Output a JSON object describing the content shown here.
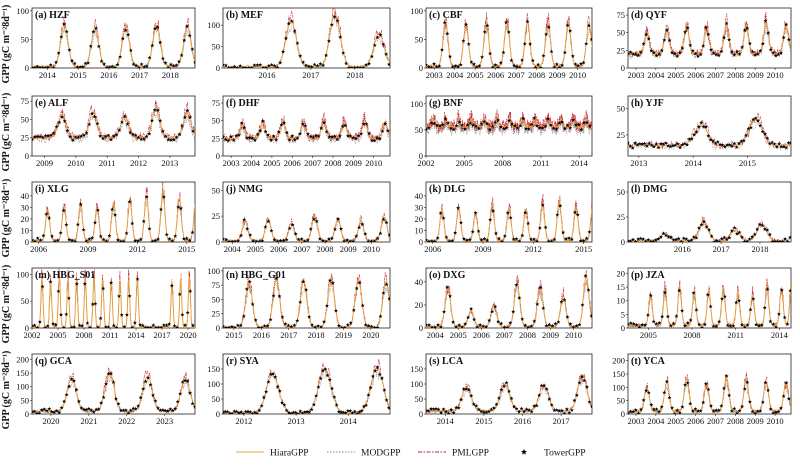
{
  "ylabel_row_text": "GPP (gC m⁻²8d⁻¹)",
  "colors": {
    "HiaraGPP": "#e8a23c",
    "MODGPP": "#8a8a8a",
    "PMLGPP": "#c4202a",
    "TowerGPP": "#000000"
  },
  "legend": [
    {
      "name": "HiaraGPP",
      "style": "solid",
      "color": "#e8a23c"
    },
    {
      "name": "MODGPP",
      "style": "dotted",
      "color": "#8a8a8a"
    },
    {
      "name": "PMLGPP",
      "style": "dashdot",
      "color": "#c4202a"
    },
    {
      "name": "TowerGPP",
      "style": "star",
      "color": "#000000"
    }
  ],
  "chart_data": [
    {
      "type": "line",
      "title": "(a) HZF",
      "xlim": [
        2013.5,
        2018.8
      ],
      "ylim": [
        0,
        105
      ],
      "yticks": [
        0,
        50,
        100
      ],
      "xticks": [
        2014,
        2015,
        2016,
        2017,
        2018
      ],
      "peaks": [
        75,
        68,
        70,
        75,
        72
      ],
      "peak_years": [
        2014,
        2015,
        2016,
        2017,
        2018
      ],
      "base": 2,
      "seed": 1,
      "tower_max": 100
    },
    {
      "type": "line",
      "title": "(b) MEF",
      "xlim": [
        2015.0,
        2018.8
      ],
      "ylim": [
        0,
        140
      ],
      "yticks": [
        0,
        50,
        100
      ],
      "xticks": [
        2016,
        2017,
        2018
      ],
      "peaks": [
        110,
        125,
        80
      ],
      "peak_years": [
        2016,
        2017,
        2018
      ],
      "base": 2,
      "seed": 2,
      "tower_max": 135
    },
    {
      "type": "line",
      "title": "(c) CBF",
      "xlim": [
        2002.6,
        2010.7
      ],
      "ylim": [
        0,
        105
      ],
      "yticks": [
        0,
        50,
        100
      ],
      "xticks": [
        2003,
        2004,
        2005,
        2006,
        2007,
        2008,
        2009,
        2010
      ],
      "peaks": [
        80,
        75,
        78,
        82,
        80,
        78,
        80,
        78
      ],
      "peak_years": [
        2003,
        2004,
        2005,
        2006,
        2007,
        2008,
        2009,
        2010
      ],
      "base": 3,
      "seed": 3,
      "tower_max": 100
    },
    {
      "type": "line",
      "title": "(d) QYF",
      "xlim": [
        2002.6,
        2010.8
      ],
      "ylim": [
        0,
        85
      ],
      "yticks": [
        0,
        25,
        50,
        75
      ],
      "xticks": [
        2003,
        2004,
        2005,
        2006,
        2007,
        2008,
        2009,
        2010
      ],
      "peaks": [
        50,
        55,
        60,
        58,
        62,
        60,
        65,
        60
      ],
      "peak_years": [
        2003,
        2004,
        2005,
        2006,
        2007,
        2008,
        2009,
        2010
      ],
      "base": 20,
      "seed": 4,
      "tower_max": 80
    },
    {
      "type": "line",
      "title": "(e) ALF",
      "xlim": [
        2008.6,
        2013.8
      ],
      "ylim": [
        0,
        82
      ],
      "yticks": [
        0,
        25,
        50,
        75
      ],
      "xticks": [
        2009,
        2010,
        2011,
        2012,
        2013
      ],
      "peaks": [
        55,
        60,
        55,
        65,
        60
      ],
      "peak_years": [
        2009,
        2010,
        2011,
        2012,
        2013
      ],
      "base": 25,
      "seed": 5,
      "tower_max": 78
    },
    {
      "type": "line",
      "title": "(f) DHF",
      "xlim": [
        2002.6,
        2010.8
      ],
      "ylim": [
        0,
        85
      ],
      "yticks": [
        0,
        25,
        50,
        75
      ],
      "xticks": [
        2003,
        2004,
        2005,
        2006,
        2007,
        2008,
        2009,
        2010
      ],
      "peaks": [
        45,
        48,
        50,
        46,
        50,
        48,
        50,
        47
      ],
      "peak_years": [
        2003,
        2004,
        2005,
        2006,
        2007,
        2008,
        2009,
        2010
      ],
      "base": 25,
      "seed": 6,
      "tower_max": 70
    },
    {
      "type": "line",
      "title": "(g) BNF",
      "xlim": [
        2002.0,
        2015.0
      ],
      "ylim": [
        0,
        115
      ],
      "yticks": [
        0,
        50,
        100
      ],
      "xticks": [
        2002,
        2005,
        2008,
        2011,
        2014
      ],
      "peaks": [
        70,
        70,
        70,
        70,
        70,
        70,
        70,
        70,
        70,
        70,
        70,
        70,
        70
      ],
      "peak_years": [
        2002,
        2003,
        2004,
        2005,
        2006,
        2007,
        2008,
        2009,
        2010,
        2011,
        2012,
        2013,
        2014
      ],
      "base": 55,
      "seed": 7,
      "tower_max": 95
    },
    {
      "type": "line",
      "title": "(h) YJF",
      "xlim": [
        2012.8,
        2015.8
      ],
      "ylim": [
        5,
        62
      ],
      "yticks": [
        25,
        50
      ],
      "xticks": [
        2013,
        2014,
        2015
      ],
      "peaks": [
        35,
        40,
        35
      ],
      "peak_years": [
        2013.6,
        2014.6,
        2015.6
      ],
      "base": 15,
      "seed": 8,
      "tower_max": 45
    },
    {
      "type": "line",
      "title": "(i) XLG",
      "xlim": [
        2005.6,
        2015.5
      ],
      "ylim": [
        0,
        52
      ],
      "yticks": [
        0,
        10,
        20,
        30,
        40
      ],
      "xticks": [
        2006,
        2009,
        2012,
        2015
      ],
      "peaks": [
        28,
        30,
        32,
        30,
        34,
        36,
        40,
        44,
        38,
        35
      ],
      "peak_years": [
        2006,
        2007,
        2008,
        2009,
        2010,
        2011,
        2012,
        2013,
        2014,
        2015
      ],
      "base": 1,
      "seed": 9,
      "tower_max": 50
    },
    {
      "type": "line",
      "title": "(j) NMG",
      "xlim": [
        2003.6,
        2010.8
      ],
      "ylim": [
        0,
        58
      ],
      "yticks": [
        0,
        25,
        50
      ],
      "xticks": [
        2004,
        2005,
        2006,
        2007,
        2008,
        2009,
        2010
      ],
      "peaks": [
        20,
        22,
        18,
        25,
        22,
        20,
        24
      ],
      "peak_years": [
        2004,
        2005,
        2006,
        2007,
        2008,
        2009,
        2010
      ],
      "base": 1,
      "seed": 10,
      "tower_max": 55
    },
    {
      "type": "line",
      "title": "(k) DLG",
      "xlim": [
        2005.6,
        2015.5
      ],
      "ylim": [
        0,
        52
      ],
      "yticks": [
        0,
        10,
        20,
        30,
        40
      ],
      "xticks": [
        2006,
        2009,
        2012,
        2015
      ],
      "peaks": [
        28,
        30,
        25,
        32,
        30,
        28,
        33,
        35,
        30,
        32
      ],
      "peak_years": [
        2006,
        2007,
        2008,
        2009,
        2010,
        2011,
        2012,
        2013,
        2014,
        2015
      ],
      "base": 1,
      "seed": 11,
      "tower_max": 45
    },
    {
      "type": "line",
      "title": "(l) DMG",
      "xlim": [
        2014.6,
        2018.8
      ],
      "ylim": [
        0,
        60
      ],
      "yticks": [
        0,
        25,
        50
      ],
      "xticks": [
        2016,
        2017,
        2018
      ],
      "peaks": [
        8,
        20,
        12,
        18,
        52
      ],
      "peak_years": [
        2015,
        2016,
        2016.8,
        2017.5,
        2018.5
      ],
      "base": 1,
      "seed": 12,
      "tower_max": 55
    },
    {
      "type": "line",
      "title": "(m) HBG_S01",
      "xlim": [
        2002.0,
        2020.8
      ],
      "ylim": [
        0,
        112
      ],
      "yticks": [
        0,
        50,
        100
      ],
      "xticks": [
        2002,
        2005,
        2008,
        2011,
        2014,
        2017,
        2020
      ],
      "peaks": [
        90,
        85,
        95,
        90,
        88,
        92,
        95,
        90,
        85,
        88,
        90,
        92,
        0,
        0,
        0,
        85,
        90,
        95,
        92
      ],
      "peak_years": [
        2002.6,
        2003.6,
        2004.6,
        2005.6,
        2006.6,
        2007.6,
        2008.6,
        2009.6,
        2010.6,
        2011.6,
        2012.6,
        2013.6,
        2014.6,
        2015.6,
        2016.6,
        2017.6,
        2018.6,
        2019.6,
        2020.6
      ],
      "base": 1,
      "seed": 13,
      "tower_max": 105
    },
    {
      "type": "line",
      "title": "(n) HBG_G01",
      "xlim": [
        2014.6,
        2020.7
      ],
      "ylim": [
        0,
        105
      ],
      "yticks": [
        0,
        25,
        50,
        75,
        100
      ],
      "xticks": [
        2015,
        2016,
        2017,
        2018,
        2019,
        2020
      ],
      "peaks": [
        80,
        85,
        82,
        88,
        85,
        82
      ],
      "peak_years": [
        2015,
        2016,
        2017,
        2018,
        2019,
        2020
      ],
      "base": 1,
      "seed": 14,
      "tower_max": 90
    },
    {
      "type": "line",
      "title": "(o) DXG",
      "xlim": [
        2003.6,
        2010.8
      ],
      "ylim": [
        0,
        52
      ],
      "yticks": [
        0,
        20,
        40
      ],
      "xticks": [
        2004,
        2005,
        2006,
        2007,
        2008,
        2009,
        2010
      ],
      "peaks": [
        35,
        15,
        20,
        38,
        35,
        28,
        45
      ],
      "peak_years": [
        2004,
        2005,
        2006,
        2007,
        2008,
        2009,
        2010
      ],
      "base": 1,
      "seed": 15,
      "tower_max": 48
    },
    {
      "type": "line",
      "title": "(p) JZA",
      "xlim": [
        2003.6,
        2014.8
      ],
      "ylim": [
        0,
        22
      ],
      "yticks": [
        0,
        5,
        10,
        15,
        20
      ],
      "xticks": [
        2005,
        2008,
        2011,
        2014
      ],
      "peaks": [
        12,
        14,
        15,
        13,
        14,
        15,
        13,
        12,
        15,
        14,
        18
      ],
      "peak_years": [
        2004.6,
        2005.6,
        2006.6,
        2007.6,
        2008.6,
        2009.6,
        2010.6,
        2011.6,
        2012.6,
        2013.6,
        2014.3
      ],
      "base": 1,
      "seed": 16,
      "tower_max": 20
    },
    {
      "type": "line",
      "title": "(q) GCA",
      "xlim": [
        2019.5,
        2023.8
      ],
      "ylim": [
        0,
        220
      ],
      "yticks": [
        0,
        50,
        100,
        150,
        200
      ],
      "xticks": [
        2020,
        2021,
        2022,
        2023
      ],
      "peaks": [
        130,
        150,
        140,
        130
      ],
      "peak_years": [
        2020,
        2021,
        2022,
        2023
      ],
      "base": 10,
      "seed": 17,
      "tower_max": 190
    },
    {
      "type": "line",
      "title": "(r) SYA",
      "xlim": [
        2011.6,
        2014.8
      ],
      "ylim": [
        0,
        200
      ],
      "yticks": [
        0,
        50,
        100,
        150
      ],
      "xticks": [
        2012,
        2013,
        2014
      ],
      "peaks": [
        130,
        150,
        155
      ],
      "peak_years": [
        2012,
        2013,
        2014
      ],
      "base": 2,
      "seed": 18,
      "tower_max": 190
    },
    {
      "type": "line",
      "title": "(s) LCA",
      "xlim": [
        2013.5,
        2017.8
      ],
      "ylim": [
        0,
        200
      ],
      "yticks": [
        0,
        50,
        100,
        150
      ],
      "xticks": [
        2014,
        2015,
        2016,
        2017
      ],
      "peaks": [
        90,
        100,
        95,
        130
      ],
      "peak_years": [
        2014,
        2015,
        2016,
        2017
      ],
      "base": 10,
      "seed": 19,
      "tower_max": 190
    },
    {
      "type": "line",
      "title": "(t) YCA",
      "xlim": [
        2002.6,
        2010.8
      ],
      "ylim": [
        0,
        225
      ],
      "yticks": [
        0,
        50,
        100,
        150,
        200
      ],
      "xticks": [
        2003,
        2004,
        2005,
        2006,
        2007,
        2008,
        2009,
        2010
      ],
      "peaks": [
        100,
        120,
        130,
        110,
        140,
        125,
        120,
        115
      ],
      "peak_years": [
        2003,
        2004,
        2005,
        2006,
        2007,
        2008,
        2009,
        2010
      ],
      "base": 10,
      "seed": 20,
      "tower_max": 220
    }
  ]
}
